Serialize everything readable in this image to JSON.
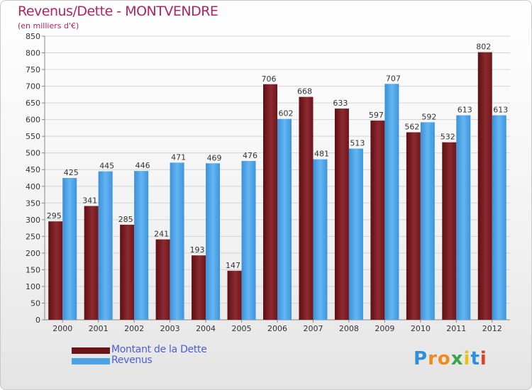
{
  "title": "Revenus/Dette - MONTVENDRE",
  "subtitle": "(en milliers d'€)",
  "colors": {
    "dette": "#7b1f24",
    "revenus": "#4aa3e8",
    "title": "#b1255e",
    "legend_text": "#4a5fd8"
  },
  "logo": {
    "text": "Proxiti",
    "letters": [
      "P",
      "r",
      "o",
      "x",
      "i",
      "t",
      "i"
    ]
  },
  "chart_data": {
    "type": "bar",
    "categories": [
      "2000",
      "2001",
      "2002",
      "2003",
      "2004",
      "2005",
      "2006",
      "2007",
      "2008",
      "2009",
      "2010",
      "2011",
      "2012"
    ],
    "series": [
      {
        "name": "Montant de la Dette",
        "values": [
          295,
          341,
          285,
          241,
          193,
          147,
          706,
          668,
          633,
          597,
          562,
          532,
          802
        ]
      },
      {
        "name": "Revenus",
        "values": [
          425,
          445,
          446,
          471,
          469,
          476,
          602,
          481,
          513,
          707,
          592,
          613,
          613
        ]
      }
    ],
    "ylim": [
      0,
      850
    ],
    "yticks": [
      0,
      50,
      100,
      150,
      200,
      250,
      300,
      350,
      400,
      450,
      500,
      550,
      600,
      650,
      700,
      750,
      800,
      850
    ],
    "grid": true,
    "legend_position": "bottom-left"
  }
}
